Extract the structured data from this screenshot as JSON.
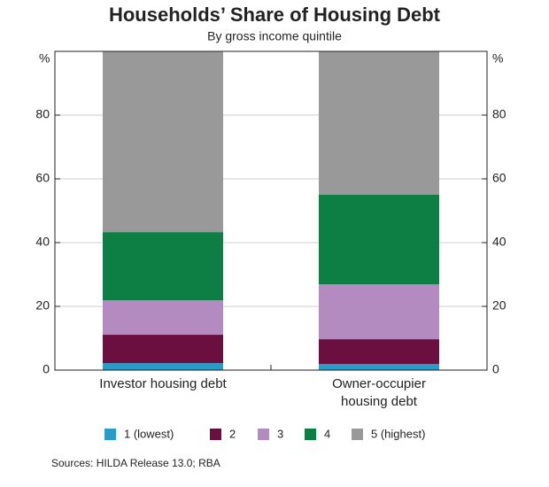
{
  "chart_data": {
    "type": "stacked_bar",
    "title": "Households’ Share of Housing Debt",
    "subtitle": "By gross income quintile",
    "y_unit": "%",
    "categories": [
      "Investor housing debt",
      "Owner-occupier housing debt"
    ],
    "series": [
      {
        "name": "1 (lowest)",
        "color": "#2a9cc8",
        "values": [
          2.2,
          1.9
        ]
      },
      {
        "name": "2",
        "color": "#6b0f40",
        "values": [
          8.9,
          7.8
        ]
      },
      {
        "name": "3",
        "color": "#b38bc1",
        "values": [
          10.8,
          17.2
        ]
      },
      {
        "name": "4",
        "color": "#0d7f45",
        "values": [
          21.4,
          28.1
        ]
      },
      {
        "name": "5 (highest)",
        "color": "#999999",
        "values": [
          56.7,
          45.0
        ]
      }
    ],
    "ylim": [
      0,
      100
    ],
    "yticks": [
      0,
      20,
      40,
      60,
      80
    ],
    "grid": true,
    "source": "Sources: HILDA Release 13.0; RBA"
  }
}
